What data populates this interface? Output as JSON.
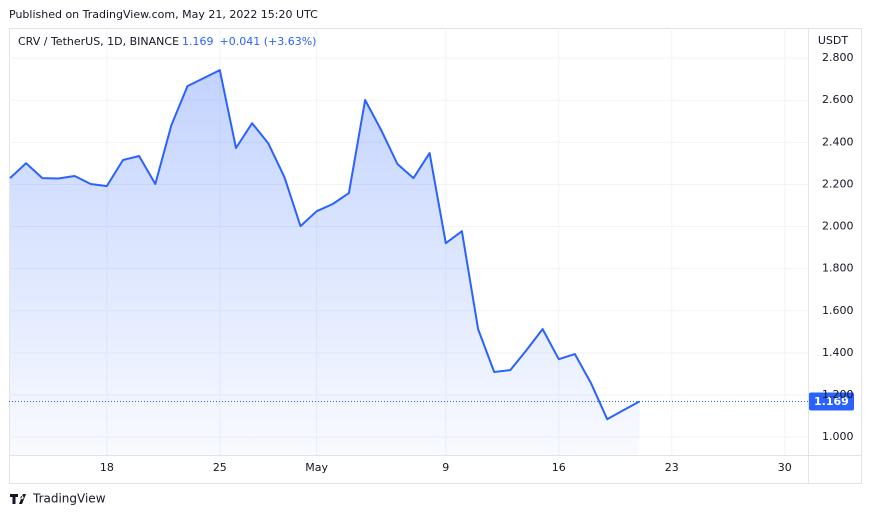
{
  "published": "Published on TradingView.com, May 21, 2022 15:20 UTC",
  "chart_data": {
    "type": "area",
    "symbol": "CRV / TetherUS, 1D, BINANCE",
    "price": "1.169",
    "change": "+0.041 (+3.63%)",
    "y_unit": "USDT",
    "color": "#2962ff",
    "grid": true,
    "categories": [
      null,
      null,
      null,
      null,
      null,
      null,
      "18",
      null,
      null,
      null,
      null,
      null,
      null,
      "25",
      null,
      null,
      null,
      null,
      null,
      "May",
      null,
      null,
      null,
      null,
      null,
      null,
      null,
      "9",
      null,
      null,
      null,
      null,
      null,
      null,
      "16",
      null,
      null,
      null,
      null,
      null,
      null,
      "23",
      null,
      null,
      null,
      null,
      null,
      null,
      "30",
      null
    ],
    "values": [
      2.23,
      2.301,
      2.23,
      2.228,
      2.24,
      2.202,
      2.192,
      2.316,
      2.335,
      2.202,
      2.482,
      2.667,
      2.705,
      2.743,
      2.373,
      2.491,
      2.396,
      2.235,
      2.002,
      2.073,
      2.107,
      2.159,
      2.601,
      2.458,
      2.297,
      2.23,
      2.349,
      1.921,
      1.978,
      1.513,
      1.309,
      1.318,
      1.413,
      1.513,
      1.37,
      1.394,
      1.256,
      1.085,
      1.128,
      1.169,
      null,
      null,
      null,
      null,
      null,
      null,
      null,
      null,
      null,
      null
    ],
    "ylim": [
      0.915,
      2.943
    ],
    "yticks": [
      {
        "value": 1.0,
        "label": "1.000"
      },
      {
        "value": 1.2,
        "label": "1.200"
      },
      {
        "value": 1.4,
        "label": "1.400"
      },
      {
        "value": 1.6,
        "label": "1.600"
      },
      {
        "value": 1.8,
        "label": "1.800"
      },
      {
        "value": 2.0,
        "label": "2.000"
      },
      {
        "value": 2.2,
        "label": "2.200"
      },
      {
        "value": 2.4,
        "label": "2.400"
      },
      {
        "value": 2.6,
        "label": "2.600"
      },
      {
        "value": 2.8,
        "label": "2.800"
      }
    ]
  },
  "footer": {
    "brand": "TradingView"
  }
}
